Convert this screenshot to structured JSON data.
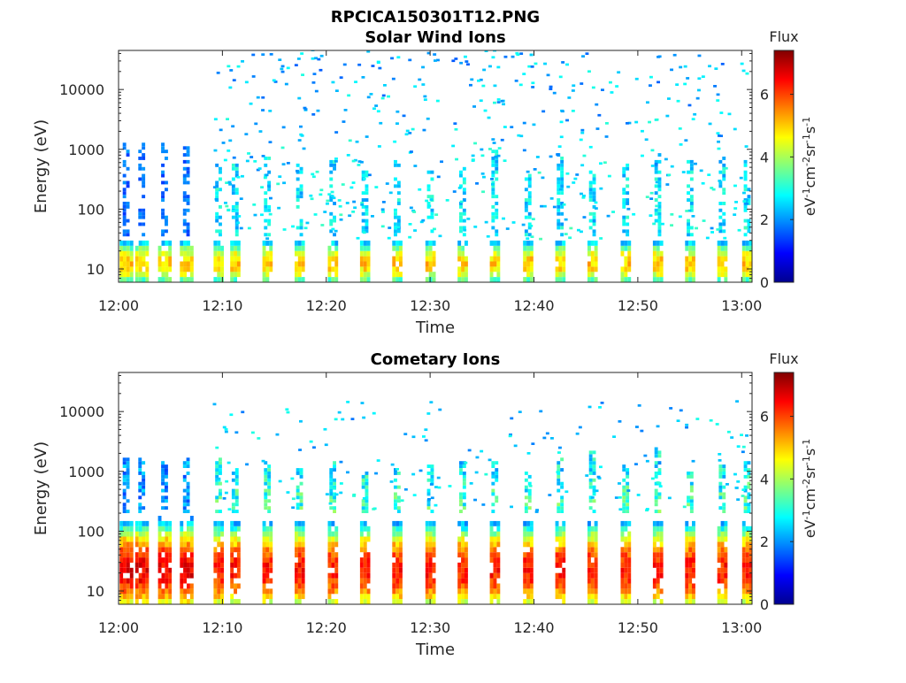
{
  "figure": {
    "main_title": "RPCICA150301T12.PNG"
  },
  "colormap": {
    "name": "jet",
    "stops": [
      "#00008f",
      "#0000ff",
      "#0080ff",
      "#00ffff",
      "#80ff80",
      "#ffff00",
      "#ff8000",
      "#ff0000",
      "#800000"
    ]
  },
  "chart_data": [
    {
      "type": "heatmap",
      "title": "Solar Wind Ions",
      "xlabel": "Time",
      "ylabel": "Energy (eV)",
      "x_ticks": [
        "12:00",
        "12:10",
        "12:20",
        "12:30",
        "12:40",
        "12:50",
        "13:00"
      ],
      "x_range_minutes": [
        0,
        61
      ],
      "y_scale": "log",
      "y_ticks": [
        {
          "value": 10,
          "label": "10"
        },
        {
          "value": 100,
          "label": "100"
        },
        {
          "value": 1000,
          "label": "1000"
        },
        {
          "value": 10000,
          "label": "10000"
        }
      ],
      "y_range": [
        6,
        45000
      ],
      "colorbar": {
        "title": "Flux",
        "unit": "eV-1cm-2sr-1s-1",
        "range": [
          0,
          7.4
        ],
        "ticks": [
          {
            "value": 0,
            "label": "0"
          },
          {
            "value": 2,
            "label": "2"
          },
          {
            "value": 4,
            "label": "4"
          },
          {
            "value": 6,
            "label": "6"
          }
        ]
      },
      "structure": {
        "band_energy_range_eV": [
          6,
          35
        ],
        "band_peak_flux": 5.0,
        "band_minutes": [
          0.7,
          2.2,
          4.4,
          6.5,
          9.6,
          11.2,
          14.3,
          17.4,
          20.6,
          23.7,
          26.8,
          30.0,
          33.1,
          36.2,
          39.4,
          42.5,
          45.6,
          48.8,
          51.9,
          55.0,
          58.1,
          60.5
        ],
        "sparse_energy_range_eV": [
          30,
          45000
        ],
        "sparse_flux_range": [
          2.0,
          3.4
        ]
      }
    },
    {
      "type": "heatmap",
      "title": "Cometary Ions",
      "xlabel": "Time",
      "ylabel": "Energy (eV)",
      "x_ticks": [
        "12:00",
        "12:10",
        "12:20",
        "12:30",
        "12:40",
        "12:50",
        "13:00"
      ],
      "x_range_minutes": [
        0,
        61
      ],
      "y_scale": "log",
      "y_ticks": [
        {
          "value": 10,
          "label": "10"
        },
        {
          "value": 100,
          "label": "100"
        },
        {
          "value": 1000,
          "label": "1000"
        },
        {
          "value": 10000,
          "label": "10000"
        }
      ],
      "y_range": [
        6,
        45000
      ],
      "colorbar": {
        "title": "Flux",
        "unit": "eV-1cm-2sr-1s-1",
        "range": [
          0,
          7.4
        ],
        "ticks": [
          {
            "value": 0,
            "label": "0"
          },
          {
            "value": 2,
            "label": "2"
          },
          {
            "value": 4,
            "label": "4"
          },
          {
            "value": 6,
            "label": "6"
          }
        ]
      },
      "structure": {
        "band_energy_range_eV": [
          6,
          200
        ],
        "band_peak_flux": 6.3,
        "band_minutes": [
          0.7,
          2.2,
          4.4,
          6.5,
          9.6,
          11.2,
          14.3,
          17.4,
          20.6,
          23.7,
          26.8,
          30.0,
          33.1,
          36.2,
          39.4,
          42.5,
          45.6,
          48.8,
          51.9,
          55.0,
          58.1,
          60.5
        ],
        "sparse_energy_range_eV": [
          200,
          30000
        ],
        "sparse_flux_range": [
          2.0,
          3.2
        ]
      }
    }
  ]
}
